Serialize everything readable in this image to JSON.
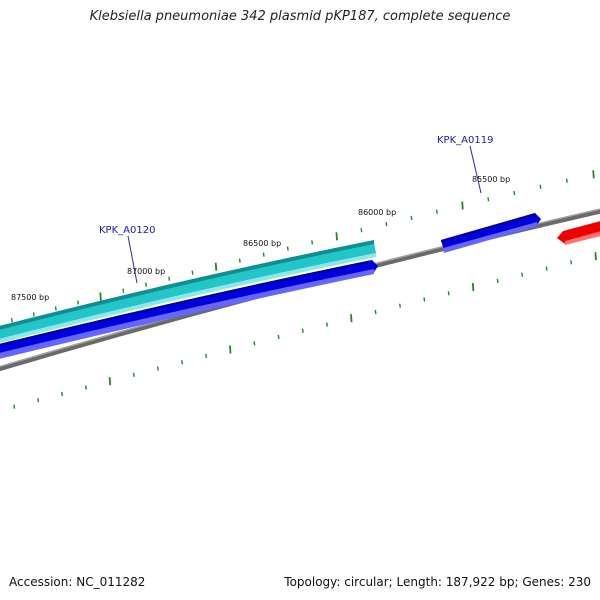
{
  "title": "Klebsiella pneumoniae 342 plasmid pKP187, complete sequence",
  "footer": {
    "accession": "Accession: NC_011282",
    "summary": "Topology: circular; Length: 187,922 bp; Genes: 230"
  },
  "ruler_labels": [
    "87500 bp",
    "87000 bp",
    "86500 bp",
    "86000 bp",
    "85500 bp"
  ],
  "genes": [
    {
      "name": "KPK_A0120",
      "strand": "reverse",
      "color": "#0000dd",
      "cds_color": "#22c6c8"
    },
    {
      "name": "KPK_A0119",
      "strand": "reverse",
      "color": "#0000dd"
    },
    {
      "name": "",
      "strand": "forward",
      "color": "#ee0000"
    }
  ],
  "colors": {
    "backbone": "#7a7a7a",
    "tick": "#1e8c1e",
    "gene": "#0000dd",
    "cds": "#22c6c8",
    "gene_forward": "#ee0000",
    "label": "#1a1aa6"
  }
}
